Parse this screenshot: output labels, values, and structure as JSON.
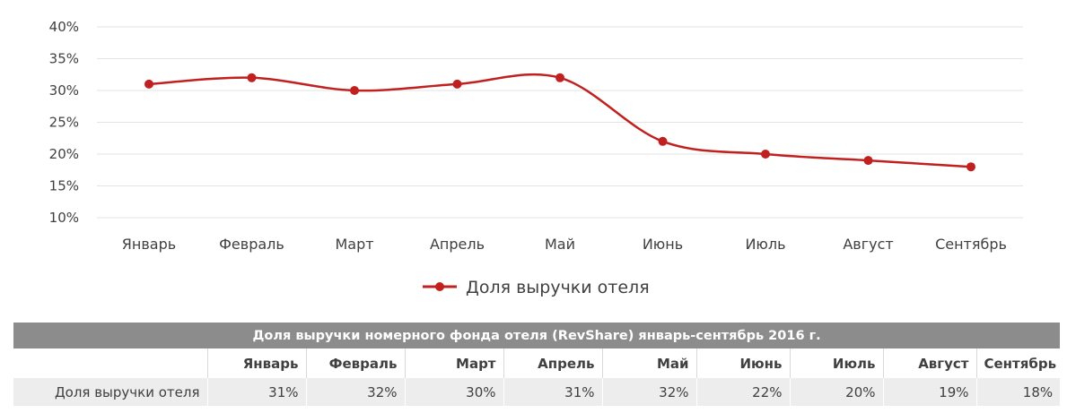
{
  "chart_data": {
    "type": "line",
    "categories": [
      "Январь",
      "Февраль",
      "Март",
      "Апрель",
      "Май",
      "Июнь",
      "Июль",
      "Август",
      "Сентябрь"
    ],
    "series": [
      {
        "name": "Доля выручки отеля",
        "values": [
          31,
          32,
          30,
          31,
          32,
          22,
          20,
          19,
          18
        ],
        "color": "#c0201f"
      }
    ],
    "y_ticks": [
      "10%",
      "15%",
      "20%",
      "25%",
      "30%",
      "35%",
      "40%"
    ],
    "ylim": [
      10,
      40
    ],
    "grid": true,
    "legend_position": "bottom",
    "title": "",
    "xlabel": "",
    "ylabel": ""
  },
  "table": {
    "title": "Доля выручки номерного фонда отеля (RevShare) январь-сентябрь 2016 г.",
    "columns": [
      "Январь",
      "Февраль",
      "Март",
      "Апрель",
      "Май",
      "Июнь",
      "Июль",
      "Август",
      "Сентябрь"
    ],
    "row_label": "Доля выручки отеля",
    "values": [
      "31%",
      "32%",
      "30%",
      "31%",
      "32%",
      "22%",
      "20%",
      "19%",
      "18%"
    ],
    "header_bg": "#8c8c8c",
    "value_row_bg": "#ededed"
  }
}
